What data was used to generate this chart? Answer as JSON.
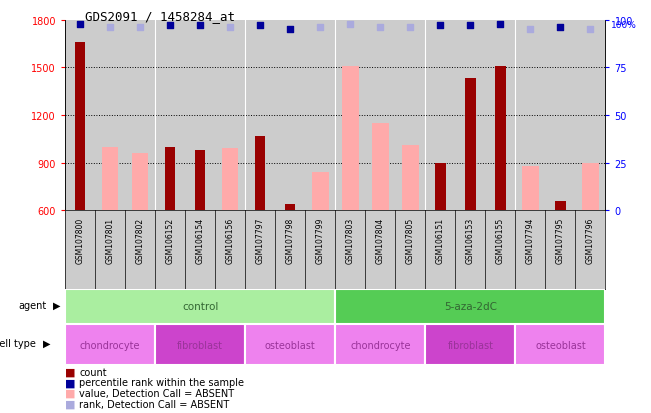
{
  "title": "GDS2091 / 1458284_at",
  "samples": [
    "GSM107800",
    "GSM107801",
    "GSM107802",
    "GSM106152",
    "GSM106154",
    "GSM106156",
    "GSM107797",
    "GSM107798",
    "GSM107799",
    "GSM107803",
    "GSM107804",
    "GSM107805",
    "GSM106151",
    "GSM106153",
    "GSM106155",
    "GSM107794",
    "GSM107795",
    "GSM107796"
  ],
  "count_values": [
    1660,
    null,
    null,
    1000,
    980,
    null,
    1070,
    640,
    null,
    null,
    null,
    null,
    900,
    1430,
    1510,
    null,
    660,
    null
  ],
  "pink_values": [
    null,
    1000,
    960,
    null,
    null,
    990,
    null,
    null,
    840,
    1510,
    1150,
    1010,
    null,
    null,
    null,
    880,
    null,
    900
  ],
  "dark_blue_rank": [
    98,
    null,
    null,
    97,
    97,
    null,
    97,
    95,
    null,
    null,
    null,
    null,
    97,
    97,
    98,
    null,
    96,
    null
  ],
  "light_blue_rank": [
    null,
    96,
    96,
    null,
    null,
    96,
    null,
    null,
    96,
    98,
    96,
    96,
    null,
    null,
    null,
    95,
    null,
    95
  ],
  "ylim": [
    600,
    1800
  ],
  "yticks": [
    600,
    900,
    1200,
    1500,
    1800
  ],
  "right_yticks": [
    0,
    25,
    50,
    75,
    100
  ],
  "right_ylim": [
    0,
    100
  ],
  "agent_groups": [
    {
      "label": "control",
      "start": 0,
      "end": 9,
      "color": "#aaeea0"
    },
    {
      "label": "5-aza-2dC",
      "start": 9,
      "end": 18,
      "color": "#55cc55"
    }
  ],
  "cell_type_groups": [
    {
      "label": "chondrocyte",
      "start": 0,
      "end": 3,
      "color": "#ee82ee"
    },
    {
      "label": "fibroblast",
      "start": 3,
      "end": 6,
      "color": "#cc44cc"
    },
    {
      "label": "osteoblast",
      "start": 6,
      "end": 9,
      "color": "#ee82ee"
    },
    {
      "label": "chondrocyte",
      "start": 9,
      "end": 12,
      "color": "#ee82ee"
    },
    {
      "label": "fibroblast",
      "start": 12,
      "end": 15,
      "color": "#cc44cc"
    },
    {
      "label": "osteoblast",
      "start": 15,
      "end": 18,
      "color": "#ee82ee"
    }
  ],
  "count_color": "#990000",
  "pink_color": "#ffaaaa",
  "dark_blue_color": "#000099",
  "light_blue_color": "#aaaadd",
  "dot_size": 18,
  "bg_color": "#cccccc",
  "agent_label_color": "#336633",
  "cell_label_color": "#993399",
  "label_area_color": "#cccccc"
}
